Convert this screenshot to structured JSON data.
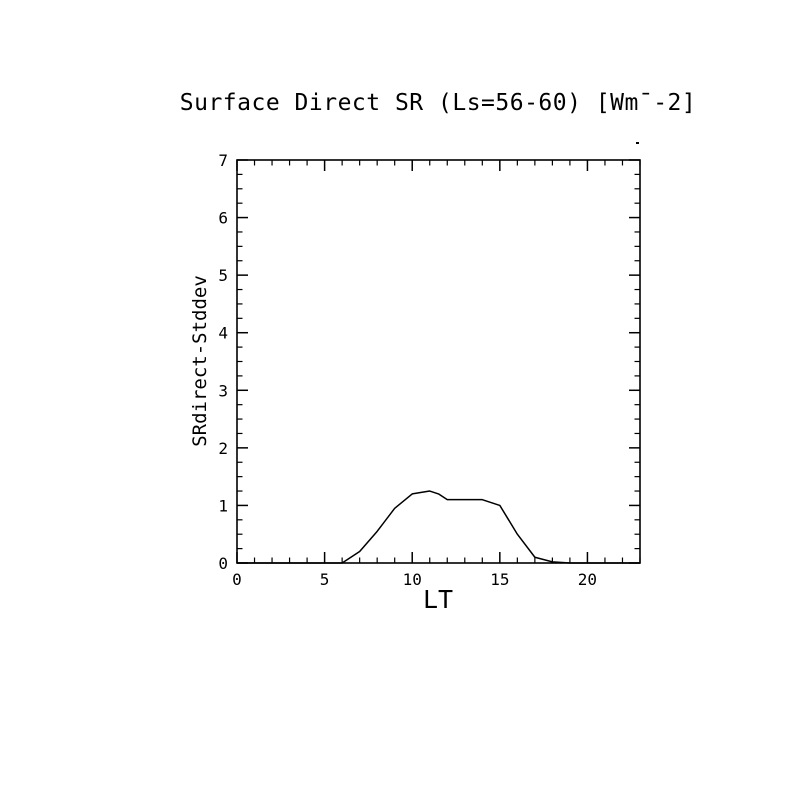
{
  "page": {
    "background_color": "#ffffff",
    "foreground_color": "#000000"
  },
  "chart_data": {
    "type": "line",
    "title": "Surface Direct SR (Ls=56-60) [Wm¯-2]",
    "xlabel": "LT",
    "ylabel": "SRdirect-Stddev",
    "xlim": [
      0,
      23
    ],
    "ylim": [
      0,
      7
    ],
    "xticks": [
      0,
      5,
      10,
      15,
      20
    ],
    "yticks": [
      0,
      1,
      2,
      3,
      4,
      5,
      6,
      7
    ],
    "x_minor_interval": 1,
    "y_minor_interval": 0.25,
    "grid": false,
    "legend": "none",
    "line_color": "#000000",
    "series": [
      {
        "name": "SRdirect-Stddev",
        "x": [
          0,
          1,
          2,
          3,
          4,
          5,
          6,
          7,
          8,
          9,
          10,
          11,
          11.5,
          12,
          13,
          14,
          15,
          16,
          17,
          18,
          19,
          20,
          21,
          22,
          23
        ],
        "y": [
          0,
          0,
          0,
          0,
          0,
          0,
          0,
          0.2,
          0.55,
          0.95,
          1.2,
          1.25,
          1.2,
          1.1,
          1.1,
          1.1,
          1.0,
          0.5,
          0.1,
          0.02,
          0,
          0,
          0,
          0,
          0
        ]
      }
    ]
  }
}
